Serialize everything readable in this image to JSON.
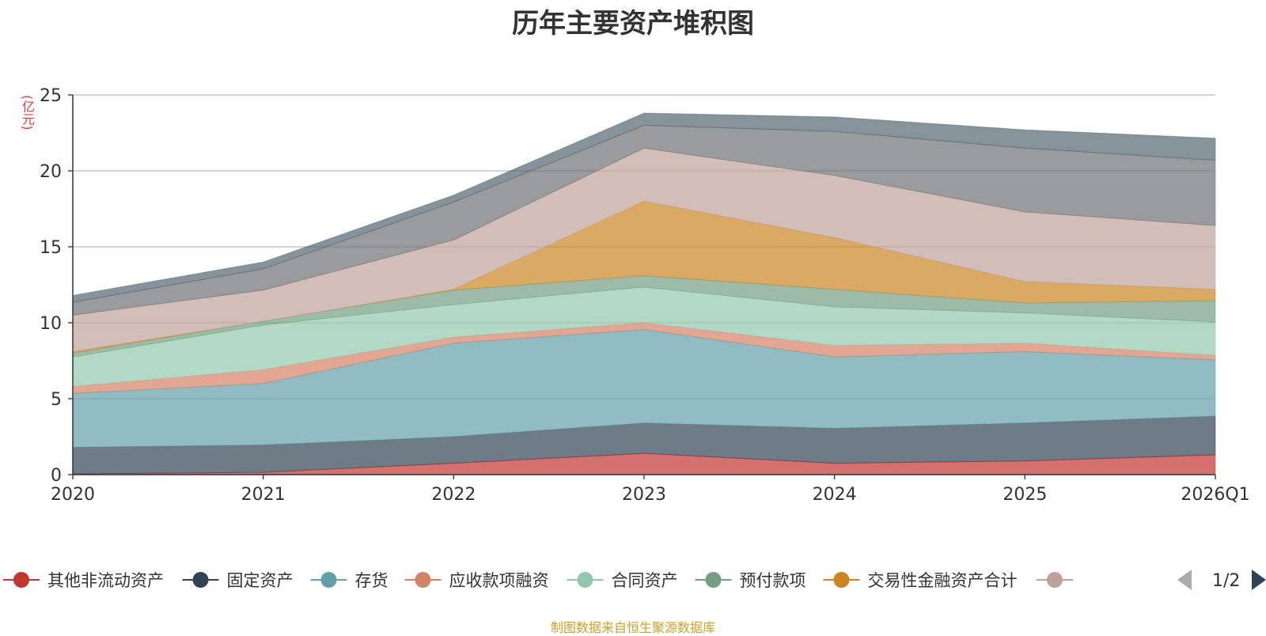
{
  "chart_data": {
    "type": "area",
    "stacked": true,
    "title": "历年主要资产堆积图",
    "ylabel": "(亿元)",
    "ylim": [
      0,
      25
    ],
    "yticks": [
      0,
      5,
      10,
      15,
      20,
      25
    ],
    "categories": [
      "2020",
      "2021",
      "2022",
      "2023",
      "2024",
      "2025",
      "2026Q1"
    ],
    "series": [
      {
        "name": "其他非流动资产",
        "color": "#c23531",
        "values": [
          0.05,
          0.15,
          0.75,
          1.4,
          0.75,
          0.9,
          1.3
        ]
      },
      {
        "name": "固定资产",
        "color": "#2f4554",
        "values": [
          1.75,
          1.8,
          1.75,
          2.0,
          2.3,
          2.5,
          2.55
        ]
      },
      {
        "name": "存货",
        "color": "#61a0a8",
        "values": [
          3.55,
          4.05,
          6.15,
          6.15,
          4.7,
          4.7,
          3.7
        ]
      },
      {
        "name": "应收款项融资",
        "color": "#d48265",
        "values": [
          0.45,
          0.9,
          0.4,
          0.45,
          0.75,
          0.55,
          0.3
        ]
      },
      {
        "name": "合同资产",
        "color": "#91c7ae",
        "values": [
          1.95,
          2.95,
          2.15,
          2.35,
          2.55,
          2.0,
          2.2
        ]
      },
      {
        "name": "预付款项",
        "color": "#749f83",
        "values": [
          0.25,
          0.25,
          0.95,
          0.75,
          1.15,
          0.65,
          1.4
        ]
      },
      {
        "name": "交易性金融资产合计",
        "color": "#ca8622",
        "values": [
          0.1,
          0.0,
          0.05,
          4.9,
          3.4,
          1.4,
          0.75
        ]
      },
      {
        "name": "",
        "color": "#bda29a",
        "values": [
          2.4,
          2.05,
          3.25,
          3.5,
          4.1,
          4.6,
          4.2
        ]
      },
      {
        "name": "",
        "color": "#6e7074",
        "values": [
          0.85,
          1.4,
          2.5,
          1.5,
          2.9,
          4.2,
          4.3
        ]
      },
      {
        "name": "",
        "color": "#546570",
        "values": [
          0.45,
          0.45,
          0.45,
          0.8,
          0.95,
          1.2,
          1.45
        ]
      }
    ]
  },
  "legend": {
    "page": "1/2"
  },
  "source": "制图数据来自恒生聚源数据库"
}
